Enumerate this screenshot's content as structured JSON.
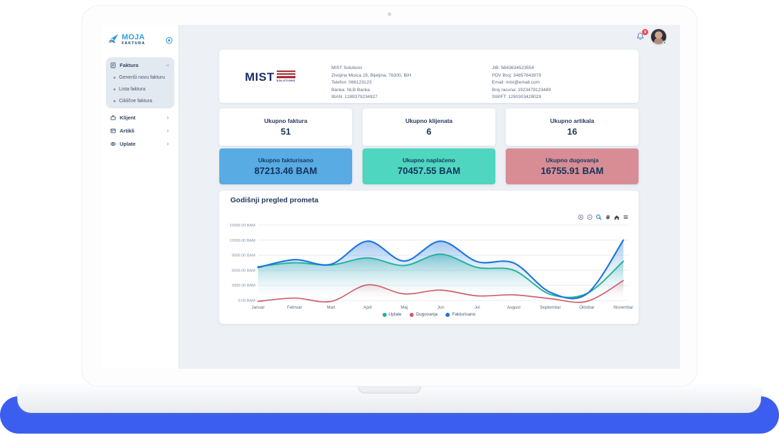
{
  "colors": {
    "accent_blue": "#2b9fdb",
    "navy_text": "#24395e",
    "laptop_shadow_blue": "#3b5ef0",
    "badge_red": "#ef4856",
    "online_green": "#2ecc71"
  },
  "header": {
    "notification_count": "9"
  },
  "sidebar": {
    "brand": {
      "line1": "MOJA",
      "line2": "FAKTURA"
    },
    "groups": [
      {
        "id": "faktura",
        "label": "Faktura",
        "icon": "invoice-icon",
        "expanded": true,
        "children": [
          {
            "id": "generisi-novu-fakturu",
            "label": "Generiši novu fakturu"
          },
          {
            "id": "lista-faktura",
            "label": "Lista faktura"
          },
          {
            "id": "ciklicne-faktura",
            "label": "Ciklične faktura"
          }
        ]
      },
      {
        "id": "klijent",
        "label": "Klijent",
        "icon": "briefcase-icon",
        "expanded": false,
        "children": []
      },
      {
        "id": "artikli",
        "label": "Artikli",
        "icon": "card-icon",
        "expanded": false,
        "children": []
      },
      {
        "id": "uplate",
        "label": "Uplate",
        "icon": "payments-icon",
        "expanded": false,
        "children": []
      }
    ]
  },
  "company": {
    "logo": {
      "text": "MIST",
      "subtext": "SOLUTIONS",
      "stripe_color": "#9e1d26"
    },
    "left_lines": [
      "MIST Solutions",
      "Zivojina Misica 19, Bijeljina, 76300, BiH",
      "Telefon: 066123123",
      "Banka: NLB Banka",
      "IBAN: 1289379234927"
    ],
    "right_lines": [
      "JIB: 5643634523554",
      "PDV Broj: 34857843979",
      "Email: mist@email.com",
      "Broj racuna: 1923479123489",
      "SWIFT: 1290303428029"
    ]
  },
  "stats": [
    {
      "label": "Ukupno faktura",
      "value": "51"
    },
    {
      "label": "Ukupno klijenata",
      "value": "6"
    },
    {
      "label": "Ukupno artikala",
      "value": "16"
    }
  ],
  "totals": [
    {
      "label": "Ukupno fakturisano",
      "value": "87213.46 BAM",
      "bg": "#58abe3"
    },
    {
      "label": "Ukupno naplaćeno",
      "value": "70457.55 BAM",
      "bg": "#4fd6c0"
    },
    {
      "label": "Ukupno dugovanja",
      "value": "16755.91 BAM",
      "bg": "#d88d95"
    }
  ],
  "chart_data": {
    "type": "area",
    "title": "Godišnji pregled prometa",
    "categories": [
      "Januar",
      "Februar",
      "Mart",
      "April",
      "Maj",
      "Jun",
      "Jul",
      "August",
      "Septembar",
      "Oktobar",
      "Novembar"
    ],
    "series": [
      {
        "name": "Uplate",
        "color": "#22b39b",
        "fill_opacity": 0.52,
        "stroke_width": 2,
        "values": [
          6700,
          7500,
          7050,
          8450,
          6950,
          9200,
          6550,
          6000,
          1200,
          1350,
          7800
        ]
      },
      {
        "name": "Dugovanja",
        "color": "#cd5f6b",
        "fill_opacity": 0.3,
        "stroke_width": 1.7,
        "values": [
          -200,
          450,
          -200,
          3100,
          1300,
          2050,
          900,
          1100,
          350,
          -200,
          3950
        ]
      },
      {
        "name": "Fakturisano",
        "color": "#1e76dd",
        "fill_opacity": 0.42,
        "stroke_width": 2.2,
        "values": [
          6550,
          8100,
          7200,
          11800,
          7850,
          11800,
          7700,
          7450,
          1600,
          1300,
          12000
        ]
      }
    ],
    "ylim": [
      0,
      15000
    ],
    "yticks": [
      "0.00 BAM",
      "3000.00 BAM",
      "6000.00 BAM",
      "9000.00 BAM",
      "12000.00 BAM",
      "15000.00 BAM"
    ],
    "grid": true,
    "legend_position": "bottom",
    "toolbar": [
      "zoom-in-icon",
      "zoom-out-icon",
      "selection-zoom-icon",
      "pan-icon",
      "home-icon",
      "menu-icon"
    ]
  }
}
